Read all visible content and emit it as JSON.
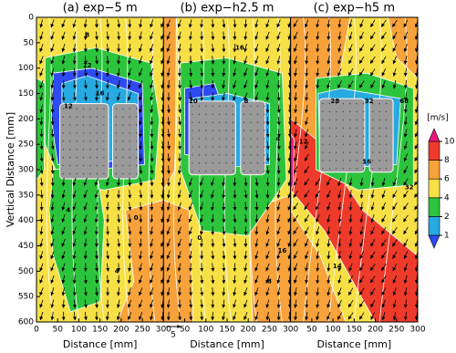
{
  "chart_data": [
    {
      "type": "contour",
      "title": "(a) exp−5 m",
      "xlabel": "Distance [mm]",
      "ylabel": "Vertical Distance [mm]",
      "xlim": [
        0,
        300
      ],
      "ylim": [
        600,
        0
      ],
      "xticks": [
        0,
        50,
        100,
        150,
        200,
        250,
        300
      ],
      "yticks": [
        0,
        50,
        100,
        150,
        200,
        250,
        300,
        350,
        400,
        450,
        500,
        550,
        600
      ],
      "contour_labels": [
        8,
        12,
        12,
        16,
        4,
        0,
        4
      ]
    },
    {
      "type": "contour",
      "title": "(b) exp−h2.5 m",
      "xlabel": "Distance [mm]",
      "xlim": [
        0,
        300
      ],
      "ylim": [
        600,
        0
      ],
      "xticks": [
        50,
        100,
        150,
        200,
        250,
        300
      ],
      "contour_labels": [
        16,
        20,
        8,
        4,
        0,
        8,
        16
      ]
    },
    {
      "type": "contour",
      "title": "(c) exp−h5 m",
      "xlabel": "Distance [mm]",
      "xlim": [
        0,
        300
      ],
      "ylim": [
        600,
        0
      ],
      "xticks": [
        50,
        100,
        150,
        200,
        250,
        300
      ],
      "contour_labels": [
        28,
        32,
        68,
        12,
        16,
        32,
        14
      ]
    }
  ],
  "colorbar": {
    "label": "[m/s]",
    "ticks": [
      1,
      2,
      4,
      6,
      8,
      10
    ],
    "colors": [
      "#2e4bf0",
      "#27a9e1",
      "#2cc43c",
      "#f7e046",
      "#f7a23a",
      "#ee3a2a",
      "#e6157d"
    ]
  },
  "reference_vector": 5
}
